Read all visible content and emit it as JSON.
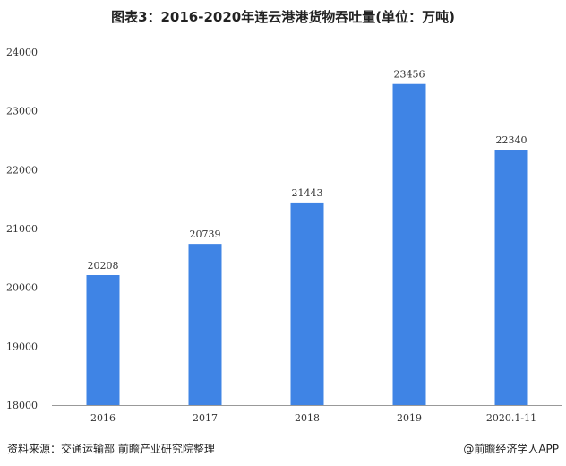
{
  "title": "图表3：2016-2020年连云港港货物吞吐量(单位：万吨)",
  "footer": {
    "source": "资料来源：交通运输部 前瞻产业研究院整理",
    "brand": "@前瞻经济学人APP"
  },
  "colors": {
    "bar": "#3f84e5",
    "axis": "#999999"
  },
  "chart_data": {
    "type": "bar",
    "categories": [
      "2016",
      "2017",
      "2018",
      "2019",
      "2020.1-11"
    ],
    "values": [
      20208,
      20739,
      21443,
      23456,
      22340
    ],
    "ylim": [
      18000,
      24000
    ],
    "yticks": [
      18000,
      19000,
      20000,
      21000,
      22000,
      23000,
      24000
    ],
    "grid": false,
    "legend": "none"
  }
}
